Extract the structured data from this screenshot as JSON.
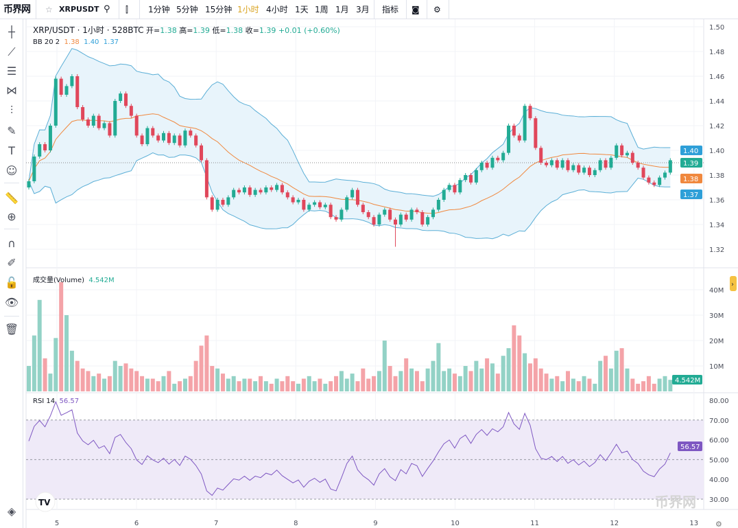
{
  "topbar": {
    "logo": "币界网",
    "symbol": "XRPUSDT",
    "intervals": [
      "1分钟",
      "5分钟",
      "15分钟",
      "1小时",
      "4小时",
      "1天",
      "1周",
      "1月",
      "3月"
    ],
    "active_interval": "1小时",
    "indicators_label": "指标",
    "icons": [
      "star-icon",
      "search-icon",
      "candlestick-icon",
      "camera-icon",
      "gear-icon"
    ]
  },
  "left_toolbar": {
    "icons": [
      "crosshair-icon",
      "trend-line-icon",
      "horizontal-lines-icon",
      "pattern-icon",
      "fib-icon",
      "brush-icon",
      "text-icon",
      "emoji-icon",
      "ruler-icon",
      "zoom-in-icon",
      "magnet-icon",
      "lock-drawing-icon",
      "lock-icon",
      "eye-icon",
      "trash-icon",
      "layers-icon"
    ]
  },
  "legend": {
    "title": "XRP/USDT · 1小时 · 528BTC",
    "open_label": "开=",
    "open": "1.38",
    "high_label": "高=",
    "high": "1.39",
    "low_label": "低=",
    "low": "1.38",
    "close_label": "收=",
    "close": "1.39",
    "change": "+0.01 (+0.60%)",
    "bb_label": "BB 20 2",
    "bb_mid": "1.38",
    "bb_upper": "1.40",
    "bb_lower": "1.37"
  },
  "volume_legend": {
    "label": "成交量(Volume)",
    "value": "4.542M"
  },
  "rsi_legend": {
    "label": "RSI 14",
    "value": "56.57"
  },
  "colors": {
    "up": "#22ab94",
    "down": "#e0475b",
    "bb_band": "#5aaed6",
    "bb_mid": "#f0883e",
    "rsi": "#7e57c2",
    "active": "#d9a320"
  },
  "chart_data": {
    "type": "candlestick",
    "interval": "1小时",
    "price_ticks": [
      "1.50",
      "1.48",
      "1.46",
      "1.44",
      "1.42",
      "1.40",
      "1.38",
      "1.36",
      "1.34",
      "1.32"
    ],
    "price_range": [
      1.315,
      1.505
    ],
    "price_badges": [
      {
        "label": "1.40",
        "value": 1.4,
        "color": "#2e9fd8"
      },
      {
        "label": "1.39",
        "value": 1.39,
        "color": "#22ab94"
      },
      {
        "label": "1.38",
        "value": 1.38,
        "color": "#f0883e"
      },
      {
        "label": "1.37",
        "value": 1.37,
        "color": "#2e9fd8"
      }
    ],
    "last_price": 1.39,
    "spike_low": 1.322,
    "close": [
      1.375,
      1.395,
      1.405,
      1.4,
      1.42,
      1.458,
      1.445,
      1.452,
      1.46,
      1.435,
      1.425,
      1.42,
      1.428,
      1.418,
      1.422,
      1.412,
      1.44,
      1.446,
      1.436,
      1.428,
      1.412,
      1.405,
      1.418,
      1.412,
      1.408,
      1.414,
      1.406,
      1.412,
      1.404,
      1.416,
      1.412,
      1.404,
      1.392,
      1.362,
      1.352,
      1.36,
      1.356,
      1.362,
      1.368,
      1.366,
      1.37,
      1.364,
      1.368,
      1.366,
      1.37,
      1.368,
      1.372,
      1.366,
      1.362,
      1.358,
      1.36,
      1.352,
      1.356,
      1.358,
      1.354,
      1.356,
      1.346,
      1.344,
      1.352,
      1.362,
      1.368,
      1.356,
      1.35,
      1.346,
      1.34,
      1.348,
      1.352,
      1.344,
      1.34,
      1.348,
      1.344,
      1.352,
      1.35,
      1.34,
      1.346,
      1.352,
      1.36,
      1.368,
      1.372,
      1.366,
      1.376,
      1.38,
      1.374,
      1.384,
      1.39,
      1.386,
      1.394,
      1.392,
      1.398,
      1.42,
      1.412,
      1.408,
      1.436,
      1.426,
      1.402,
      1.39,
      1.388,
      1.392,
      1.386,
      1.392,
      1.384,
      1.388,
      1.382,
      1.386,
      1.38,
      1.384,
      1.392,
      1.386,
      1.394,
      1.404,
      1.396,
      1.398,
      1.39,
      1.386,
      1.378,
      1.374,
      1.372,
      1.378,
      1.382,
      1.392
    ],
    "first_open": 1.37,
    "volume_M": [
      10,
      22,
      36,
      13,
      7,
      21,
      43,
      30,
      16,
      12,
      9,
      8,
      6,
      7,
      5,
      6,
      12,
      10,
      11,
      9,
      8,
      6,
      5,
      5,
      4,
      6,
      8,
      3,
      4,
      5,
      6,
      12,
      18,
      22,
      10,
      9,
      7,
      5,
      6,
      4,
      5,
      5,
      4,
      6,
      4,
      3,
      5,
      4,
      6,
      4,
      3,
      5,
      6,
      4,
      5,
      3,
      4,
      6,
      8,
      5,
      7,
      4,
      9,
      5,
      6,
      8,
      20,
      10,
      6,
      8,
      13,
      9,
      8,
      4,
      9,
      12,
      19,
      8,
      9,
      7,
      6,
      10,
      8,
      12,
      9,
      13,
      11,
      7,
      14,
      17,
      26,
      22,
      15,
      11,
      13,
      9,
      7,
      5,
      6,
      4,
      8,
      5,
      4,
      6,
      5,
      3,
      12,
      14,
      9,
      16,
      17,
      9,
      5,
      3,
      4,
      6,
      3,
      5,
      6,
      4.542
    ],
    "volume_ticks": [
      "40M",
      "30M",
      "20M",
      "10M"
    ],
    "volume_badge": "4.542M",
    "rsi_ticks": [
      "80.00",
      "70.00",
      "60.00",
      "50.00",
      "40.00",
      "30.00"
    ],
    "rsi_badge": "56.57",
    "rsi_band": [
      30,
      70
    ],
    "x_ticks": [
      "5",
      "6",
      "7",
      "8",
      "9",
      "10",
      "11",
      "12",
      "13"
    ]
  },
  "watermark": "币界网"
}
